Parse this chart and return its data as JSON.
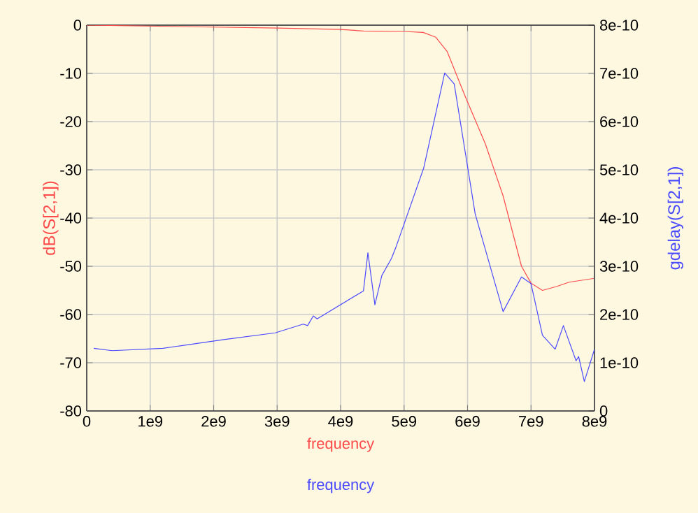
{
  "chart_data": {
    "type": "line",
    "xlabel": "frequency",
    "ylabel": "dB(S[2,1])",
    "y2label": "gdelay(S[2,1])",
    "annotations": [
      "frequency"
    ],
    "xlim": [
      0,
      8000000000.0
    ],
    "xticks": [
      0,
      {
        "value": 1000000000.0,
        "label": "1e9"
      },
      {
        "value": 2000000000.0,
        "label": "2e9"
      },
      {
        "value": 3000000000.0,
        "label": "3e9"
      },
      {
        "value": 4000000000.0,
        "label": "4e9"
      },
      {
        "value": 5000000000.0,
        "label": "5e9"
      },
      {
        "value": 6000000000.0,
        "label": "6e9"
      },
      {
        "value": 7000000000.0,
        "label": "7e9"
      },
      {
        "value": 8000000000.0,
        "label": "8e9"
      }
    ],
    "ylim": [
      -80,
      0
    ],
    "yticks": [
      -80,
      -70,
      -60,
      -50,
      -40,
      -30,
      -20,
      -10,
      0
    ],
    "y2lim": [
      0,
      8e-10
    ],
    "y2ticks": [
      0,
      {
        "value": 1e-10,
        "label": "1e-10"
      },
      {
        "value": 2e-10,
        "label": "2e-10"
      },
      {
        "value": 3e-10,
        "label": "3e-10"
      },
      {
        "value": 4e-10,
        "label": "4e-10"
      },
      {
        "value": 5e-10,
        "label": "5e-10"
      },
      {
        "value": 6e-10,
        "label": "6e-10"
      },
      {
        "value": 7e-10,
        "label": "7e-10"
      },
      {
        "value": 8e-10,
        "label": "8e-10"
      }
    ],
    "grid": true,
    "marker": "none",
    "line_style": "solid",
    "series": [
      {
        "color": "#ff4a4a",
        "x": [
          0,
          1000000000.0,
          2000000000.0,
          3000000000.0,
          4000000000.0,
          4360000000.0,
          5000000000.0,
          5300000000.0,
          5500000000.0,
          5680000000.0,
          5970000000.0,
          6280000000.0,
          6560000000.0,
          6850000000.0,
          7000000000.0,
          7180000000.0,
          7400000000.0,
          7600000000.0,
          8000000000.0
        ],
        "values": [
          0,
          -0.2,
          -0.4,
          -0.6,
          -0.9,
          -1.2,
          -1.3,
          -1.5,
          -2.5,
          -5.5,
          -15,
          -24.6,
          -35.4,
          -50,
          -53.5,
          -55,
          -54.2,
          -53.3,
          -52.5
        ]
      },
      {
        "color": "#4a4aff",
        "axis": "y2",
        "x": [
          110000000.0,
          400000000.0,
          1200000000.0,
          2160000000.0,
          2970000000.0,
          3410000000.0,
          3480000000.0,
          3570000000.0,
          3630000000.0,
          4360000000.0,
          4430000000.0,
          4540000000.0,
          4650000000.0,
          4800000000.0,
          4870000000.0,
          5310000000.0,
          5640000000.0,
          5790000000.0,
          6120000000.0,
          6560000000.0,
          6850000000.0,
          7000000000.0,
          7180000000.0,
          7380000000.0,
          7510000000.0,
          7710000000.0,
          7750000000.0,
          7840000000.0,
          8000000000.0
        ],
        "values": [
          1.3e-10,
          1.25e-10,
          1.3e-10,
          1.48e-10,
          1.62e-10,
          1.8e-10,
          1.77e-10,
          1.97e-10,
          1.91e-10,
          2.49e-10,
          3.28e-10,
          2.2e-10,
          2.81e-10,
          3.16e-10,
          3.39e-10,
          5.04e-10,
          7.01e-10,
          6.78e-10,
          4.09e-10,
          2.06e-10,
          2.78e-10,
          2.64e-10,
          1.57e-10,
          1.28e-10,
          1.77e-10,
          1.04e-10,
          1.13e-10,
          6.1e-11,
          1.28e-10
        ]
      }
    ]
  }
}
